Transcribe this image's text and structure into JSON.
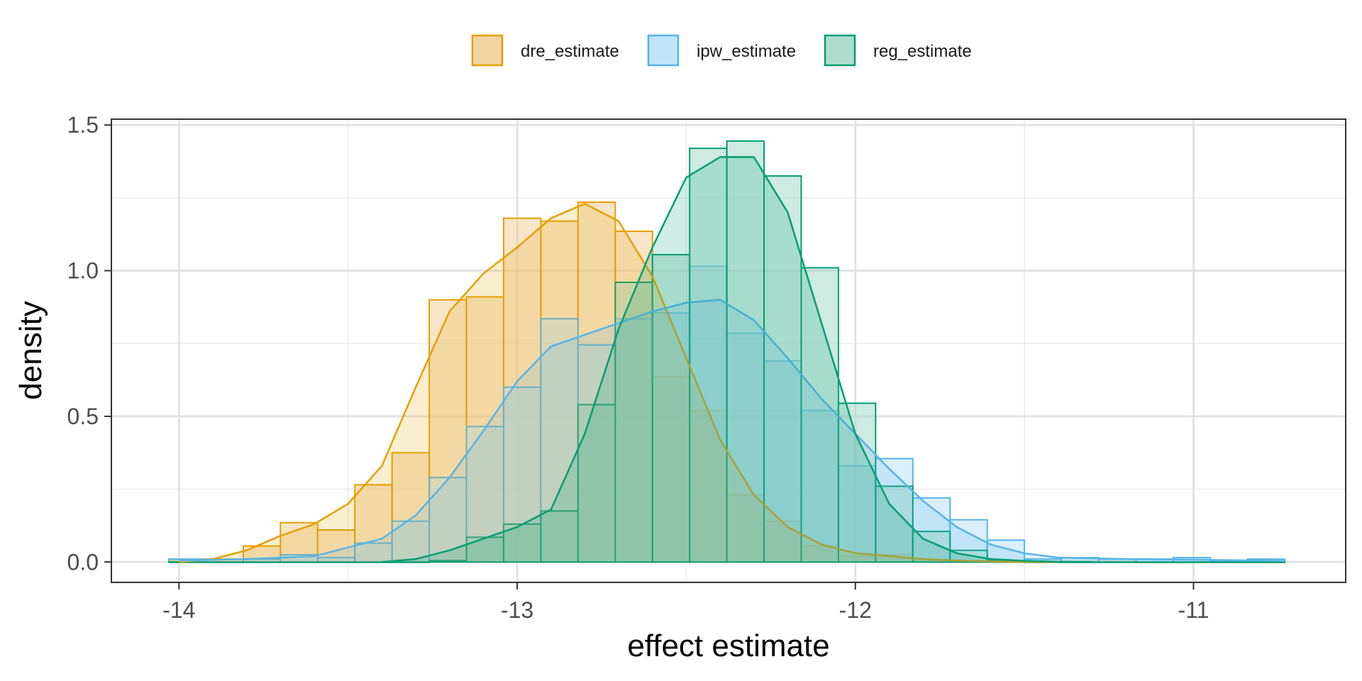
{
  "chart_data": {
    "type": "histogram",
    "xlabel": "effect estimate",
    "ylabel": "density",
    "xlim": [
      -14.2,
      -10.55
    ],
    "ylim": [
      -0.07,
      1.52
    ],
    "x_ticks": [
      -14,
      -13,
      -12,
      -11
    ],
    "x_tick_labels": [
      "-14",
      "-13",
      "-12",
      "-11"
    ],
    "y_ticks": [
      0.0,
      0.5,
      1.0,
      1.5
    ],
    "y_tick_labels": [
      "0.0",
      "0.5",
      "1.0",
      "1.5"
    ],
    "grid": true,
    "legend_position": "top",
    "bin_edges": [
      -14.03,
      -13.92,
      -13.81,
      -13.7,
      -13.59,
      -13.48,
      -13.37,
      -13.26,
      -13.15,
      -13.04,
      -12.93,
      -12.82,
      -12.71,
      -12.6,
      -12.49,
      -12.38,
      -12.27,
      -12.16,
      -12.05,
      -11.94,
      -11.83,
      -11.72,
      -11.61,
      -11.5,
      -11.39,
      -11.28,
      -11.17,
      -11.06,
      -10.95,
      -10.84,
      -10.73
    ],
    "series": [
      {
        "name": "dre_estimate",
        "color": "#E69F00",
        "fill": "#F2CF99",
        "counts": [
          0.005,
          0.01,
          0.055,
          0.135,
          0.11,
          0.265,
          0.375,
          0.9,
          0.91,
          1.18,
          1.17,
          1.235,
          1.135,
          0.635,
          0.52,
          0.23,
          0.14,
          0.055,
          0.02,
          0.025,
          0.005,
          0.005,
          0.002,
          0.002,
          0.002,
          0.002,
          0.0,
          0.0,
          0.0,
          0.0
        ],
        "density_x": [
          -14.0,
          -13.9,
          -13.8,
          -13.7,
          -13.6,
          -13.5,
          -13.4,
          -13.3,
          -13.2,
          -13.1,
          -13.0,
          -12.9,
          -12.8,
          -12.7,
          -12.6,
          -12.5,
          -12.4,
          -12.3,
          -12.2,
          -12.1,
          -12.0,
          -11.9,
          -11.8,
          -11.7,
          -11.6,
          -11.5,
          -11.4
        ],
        "density_y": [
          0.0,
          0.01,
          0.04,
          0.09,
          0.13,
          0.2,
          0.33,
          0.6,
          0.86,
          0.99,
          1.08,
          1.18,
          1.23,
          1.17,
          0.98,
          0.7,
          0.42,
          0.23,
          0.12,
          0.06,
          0.03,
          0.02,
          0.01,
          0.005,
          0.002,
          0.001,
          0.0
        ]
      },
      {
        "name": "ipw_estimate",
        "color": "#56B4E9",
        "fill": "#BBE1F6",
        "counts": [
          0.01,
          0.0,
          0.01,
          0.025,
          0.015,
          0.065,
          0.14,
          0.29,
          0.465,
          0.6,
          0.835,
          0.745,
          0.835,
          0.855,
          1.015,
          0.785,
          0.69,
          0.52,
          0.33,
          0.355,
          0.22,
          0.145,
          0.075,
          0.01,
          0.015,
          0.01,
          0.01,
          0.015,
          0.005,
          0.01
        ],
        "density_x": [
          -14.0,
          -13.8,
          -13.6,
          -13.4,
          -13.3,
          -13.2,
          -13.1,
          -13.0,
          -12.9,
          -12.8,
          -12.7,
          -12.6,
          -12.5,
          -12.4,
          -12.3,
          -12.2,
          -12.1,
          -12.0,
          -11.9,
          -11.8,
          -11.7,
          -11.6,
          -11.5,
          -11.4,
          -11.2,
          -11.0,
          -10.8,
          -10.73
        ],
        "density_y": [
          0.005,
          0.01,
          0.02,
          0.08,
          0.16,
          0.29,
          0.45,
          0.62,
          0.74,
          0.78,
          0.82,
          0.86,
          0.89,
          0.9,
          0.83,
          0.7,
          0.56,
          0.44,
          0.32,
          0.21,
          0.12,
          0.06,
          0.03,
          0.015,
          0.01,
          0.008,
          0.005,
          0.004
        ]
      },
      {
        "name": "reg_estimate",
        "color": "#009E73",
        "fill": "#A6D9C8",
        "counts": [
          0.0,
          0.0,
          0.0,
          0.0,
          0.0,
          0.0,
          0.0,
          0.005,
          0.085,
          0.13,
          0.175,
          0.54,
          0.96,
          1.055,
          1.42,
          1.445,
          1.325,
          1.01,
          0.545,
          0.26,
          0.105,
          0.04,
          0.005,
          0.0,
          0.0,
          0.0,
          0.0,
          0.0,
          0.0,
          0.0
        ],
        "density_x": [
          -13.4,
          -13.3,
          -13.2,
          -13.1,
          -13.0,
          -12.9,
          -12.8,
          -12.7,
          -12.6,
          -12.5,
          -12.4,
          -12.3,
          -12.2,
          -12.1,
          -12.0,
          -11.9,
          -11.8,
          -11.7,
          -11.6,
          -11.5,
          -11.4,
          -11.3
        ],
        "density_y": [
          0.0,
          0.01,
          0.04,
          0.08,
          0.12,
          0.18,
          0.44,
          0.8,
          1.08,
          1.32,
          1.39,
          1.39,
          1.2,
          0.82,
          0.44,
          0.2,
          0.08,
          0.03,
          0.01,
          0.004,
          0.001,
          0.0
        ]
      }
    ]
  }
}
